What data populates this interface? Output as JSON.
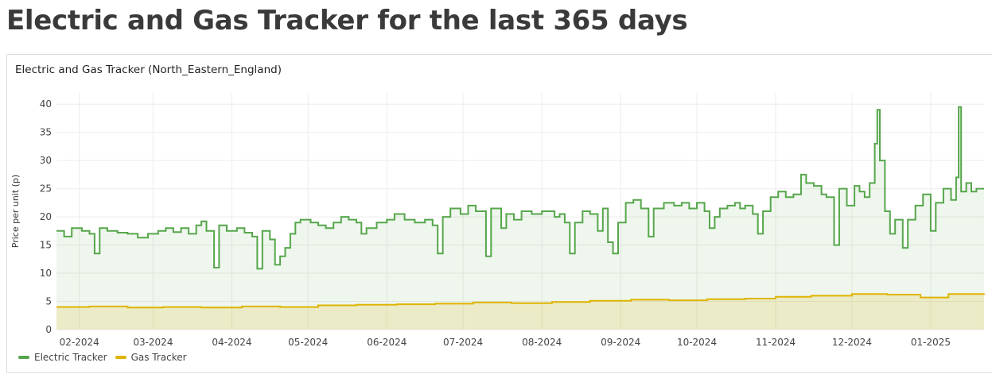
{
  "page": {
    "title": "Electric and Gas Tracker for the last 365 days"
  },
  "panel": {
    "title": "Electric and Gas Tracker (North_Eastern_England)"
  },
  "chart_data": {
    "type": "line",
    "title": "Electric and Gas Tracker (North_Eastern_England)",
    "xlabel": "",
    "ylabel": "Price per unit (p)",
    "ylim": [
      0,
      42
    ],
    "yticks": [
      0,
      5,
      10,
      15,
      20,
      25,
      30,
      35,
      40
    ],
    "xlim": [
      "2024-01-23",
      "2025-01-22"
    ],
    "xticks": [
      {
        "date": "2024-02-01",
        "label": "02-2024"
      },
      {
        "date": "2024-03-01",
        "label": "03-2024"
      },
      {
        "date": "2024-04-01",
        "label": "04-2024"
      },
      {
        "date": "2024-05-01",
        "label": "05-2024"
      },
      {
        "date": "2024-06-01",
        "label": "06-2024"
      },
      {
        "date": "2024-07-01",
        "label": "07-2024"
      },
      {
        "date": "2024-08-01",
        "label": "08-2024"
      },
      {
        "date": "2024-09-01",
        "label": "09-2024"
      },
      {
        "date": "2024-10-01",
        "label": "10-2024"
      },
      {
        "date": "2024-11-01",
        "label": "11-2024"
      },
      {
        "date": "2024-12-01",
        "label": "12-2024"
      },
      {
        "date": "2025-01-01",
        "label": "01-2025"
      }
    ],
    "grid": true,
    "legend_position": "bottom-left",
    "step": true,
    "series": [
      {
        "name": "Electric Tracker",
        "color": "#56a64b",
        "points": [
          [
            "2024-01-23",
            17.5
          ],
          [
            "2024-01-26",
            16.5
          ],
          [
            "2024-01-29",
            18.0
          ],
          [
            "2024-02-02",
            17.5
          ],
          [
            "2024-02-05",
            17.0
          ],
          [
            "2024-02-07",
            13.5
          ],
          [
            "2024-02-09",
            18.0
          ],
          [
            "2024-02-12",
            17.5
          ],
          [
            "2024-02-16",
            17.2
          ],
          [
            "2024-02-20",
            17.0
          ],
          [
            "2024-02-24",
            16.3
          ],
          [
            "2024-02-28",
            17.0
          ],
          [
            "2024-03-03",
            17.5
          ],
          [
            "2024-03-06",
            18.0
          ],
          [
            "2024-03-09",
            17.3
          ],
          [
            "2024-03-12",
            18.0
          ],
          [
            "2024-03-15",
            17.0
          ],
          [
            "2024-03-18",
            18.5
          ],
          [
            "2024-03-20",
            19.2
          ],
          [
            "2024-03-22",
            17.5
          ],
          [
            "2024-03-25",
            11.0
          ],
          [
            "2024-03-27",
            18.5
          ],
          [
            "2024-03-30",
            17.5
          ],
          [
            "2024-04-03",
            18.0
          ],
          [
            "2024-04-06",
            17.2
          ],
          [
            "2024-04-09",
            16.5
          ],
          [
            "2024-04-11",
            10.8
          ],
          [
            "2024-04-13",
            17.5
          ],
          [
            "2024-04-16",
            16.0
          ],
          [
            "2024-04-18",
            11.5
          ],
          [
            "2024-04-20",
            13.0
          ],
          [
            "2024-04-22",
            14.5
          ],
          [
            "2024-04-24",
            17.0
          ],
          [
            "2024-04-26",
            19.0
          ],
          [
            "2024-04-28",
            19.5
          ],
          [
            "2024-05-02",
            19.0
          ],
          [
            "2024-05-05",
            18.5
          ],
          [
            "2024-05-08",
            18.0
          ],
          [
            "2024-05-11",
            19.0
          ],
          [
            "2024-05-14",
            20.0
          ],
          [
            "2024-05-17",
            19.5
          ],
          [
            "2024-05-20",
            19.0
          ],
          [
            "2024-05-22",
            17.0
          ],
          [
            "2024-05-24",
            18.0
          ],
          [
            "2024-05-28",
            19.0
          ],
          [
            "2024-06-01",
            19.5
          ],
          [
            "2024-06-04",
            20.5
          ],
          [
            "2024-06-08",
            19.5
          ],
          [
            "2024-06-12",
            19.0
          ],
          [
            "2024-06-16",
            19.5
          ],
          [
            "2024-06-19",
            18.5
          ],
          [
            "2024-06-21",
            13.5
          ],
          [
            "2024-06-23",
            20.0
          ],
          [
            "2024-06-26",
            21.5
          ],
          [
            "2024-06-30",
            20.5
          ],
          [
            "2024-07-03",
            22.0
          ],
          [
            "2024-07-06",
            21.0
          ],
          [
            "2024-07-10",
            13.0
          ],
          [
            "2024-07-12",
            21.5
          ],
          [
            "2024-07-16",
            18.0
          ],
          [
            "2024-07-18",
            20.5
          ],
          [
            "2024-07-21",
            19.5
          ],
          [
            "2024-07-24",
            21.0
          ],
          [
            "2024-07-28",
            20.5
          ],
          [
            "2024-08-01",
            21.0
          ],
          [
            "2024-08-06",
            20.0
          ],
          [
            "2024-08-08",
            20.5
          ],
          [
            "2024-08-10",
            19.0
          ],
          [
            "2024-08-12",
            13.5
          ],
          [
            "2024-08-14",
            19.0
          ],
          [
            "2024-08-17",
            21.0
          ],
          [
            "2024-08-20",
            20.5
          ],
          [
            "2024-08-23",
            17.5
          ],
          [
            "2024-08-25",
            21.5
          ],
          [
            "2024-08-27",
            15.5
          ],
          [
            "2024-08-29",
            13.5
          ],
          [
            "2024-08-31",
            19.0
          ],
          [
            "2024-09-03",
            22.5
          ],
          [
            "2024-09-06",
            23.0
          ],
          [
            "2024-09-09",
            21.5
          ],
          [
            "2024-09-12",
            16.5
          ],
          [
            "2024-09-14",
            21.5
          ],
          [
            "2024-09-18",
            22.5
          ],
          [
            "2024-09-22",
            22.0
          ],
          [
            "2024-09-25",
            22.5
          ],
          [
            "2024-09-28",
            21.5
          ],
          [
            "2024-10-01",
            22.5
          ],
          [
            "2024-10-04",
            21.0
          ],
          [
            "2024-10-06",
            18.0
          ],
          [
            "2024-10-08",
            20.0
          ],
          [
            "2024-10-10",
            21.5
          ],
          [
            "2024-10-13",
            22.0
          ],
          [
            "2024-10-16",
            22.5
          ],
          [
            "2024-10-18",
            21.5
          ],
          [
            "2024-10-20",
            22.0
          ],
          [
            "2024-10-23",
            20.5
          ],
          [
            "2024-10-25",
            17.0
          ],
          [
            "2024-10-27",
            21.0
          ],
          [
            "2024-10-30",
            23.5
          ],
          [
            "2024-11-02",
            24.5
          ],
          [
            "2024-11-05",
            23.5
          ],
          [
            "2024-11-08",
            24.0
          ],
          [
            "2024-11-11",
            27.5
          ],
          [
            "2024-11-13",
            26.0
          ],
          [
            "2024-11-16",
            25.5
          ],
          [
            "2024-11-19",
            24.0
          ],
          [
            "2024-11-21",
            23.5
          ],
          [
            "2024-11-24",
            15.0
          ],
          [
            "2024-11-26",
            25.0
          ],
          [
            "2024-11-29",
            22.0
          ],
          [
            "2024-12-02",
            25.5
          ],
          [
            "2024-12-04",
            24.5
          ],
          [
            "2024-12-06",
            23.5
          ],
          [
            "2024-12-08",
            26.0
          ],
          [
            "2024-12-10",
            33.0
          ],
          [
            "2024-12-11",
            39.0
          ],
          [
            "2024-12-12",
            30.0
          ],
          [
            "2024-12-14",
            21.0
          ],
          [
            "2024-12-16",
            17.0
          ],
          [
            "2024-12-18",
            19.5
          ],
          [
            "2024-12-21",
            14.5
          ],
          [
            "2024-12-23",
            19.5
          ],
          [
            "2024-12-26",
            22.0
          ],
          [
            "2024-12-29",
            24.0
          ],
          [
            "2025-01-01",
            17.5
          ],
          [
            "2025-01-03",
            22.5
          ],
          [
            "2025-01-06",
            25.0
          ],
          [
            "2025-01-09",
            23.0
          ],
          [
            "2025-01-11",
            27.0
          ],
          [
            "2025-01-12",
            39.5
          ],
          [
            "2025-01-13",
            24.5
          ],
          [
            "2025-01-15",
            26.0
          ],
          [
            "2025-01-17",
            24.5
          ],
          [
            "2025-01-19",
            25.0
          ],
          [
            "2025-01-22",
            25.0
          ]
        ]
      },
      {
        "name": "Gas Tracker",
        "color": "#e0b400",
        "points": [
          [
            "2024-01-23",
            4.0
          ],
          [
            "2024-02-05",
            4.1
          ],
          [
            "2024-02-20",
            3.9
          ],
          [
            "2024-03-05",
            4.0
          ],
          [
            "2024-03-20",
            3.9
          ],
          [
            "2024-04-05",
            4.1
          ],
          [
            "2024-04-20",
            4.0
          ],
          [
            "2024-05-05",
            4.3
          ],
          [
            "2024-05-20",
            4.4
          ],
          [
            "2024-06-05",
            4.5
          ],
          [
            "2024-06-20",
            4.6
          ],
          [
            "2024-07-05",
            4.8
          ],
          [
            "2024-07-20",
            4.7
          ],
          [
            "2024-08-05",
            4.9
          ],
          [
            "2024-08-20",
            5.1
          ],
          [
            "2024-09-05",
            5.3
          ],
          [
            "2024-09-20",
            5.2
          ],
          [
            "2024-10-05",
            5.4
          ],
          [
            "2024-10-20",
            5.5
          ],
          [
            "2024-11-01",
            5.8
          ],
          [
            "2024-11-15",
            6.0
          ],
          [
            "2024-12-01",
            6.3
          ],
          [
            "2024-12-15",
            6.2
          ],
          [
            "2024-12-28",
            5.7
          ],
          [
            "2025-01-08",
            6.3
          ],
          [
            "2025-01-22",
            6.4
          ]
        ]
      }
    ]
  },
  "legend": {
    "items": [
      {
        "label": "Electric Tracker",
        "color": "#56a64b"
      },
      {
        "label": "Gas Tracker",
        "color": "#e0b400"
      }
    ]
  }
}
